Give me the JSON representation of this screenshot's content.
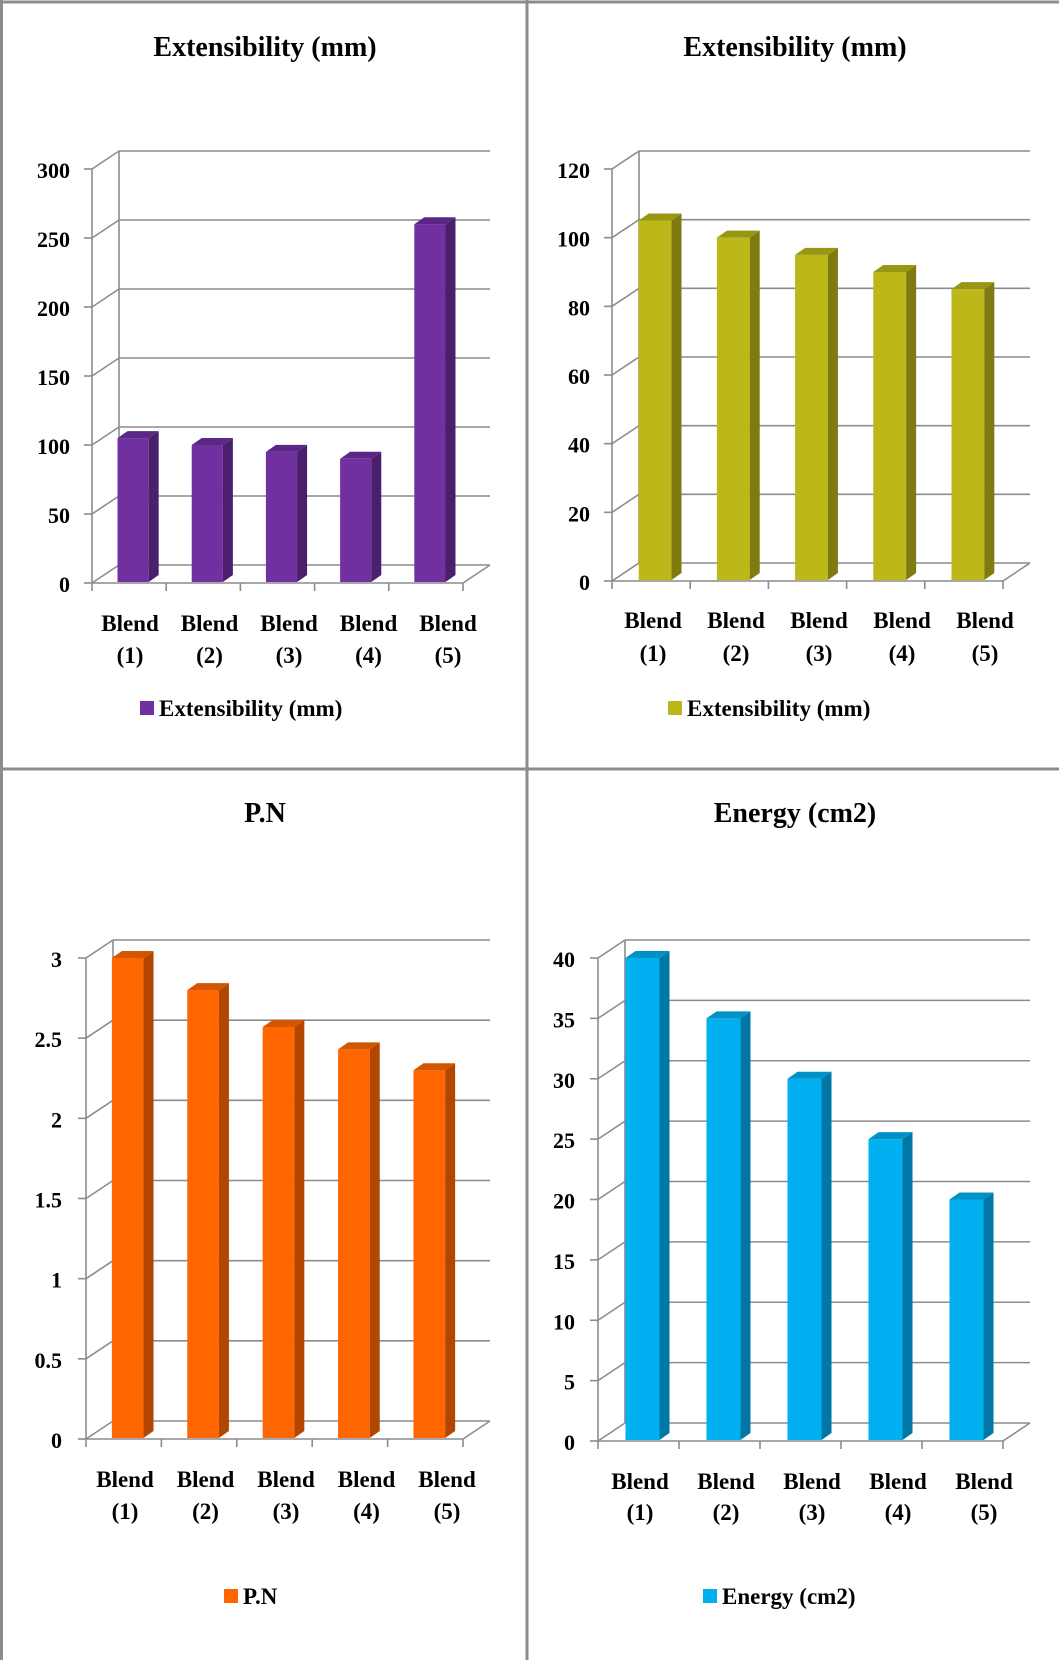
{
  "chart_data": [
    {
      "type": "bar",
      "title": "Extensibility (mm)",
      "categories": [
        [
          "Blend",
          "(1)"
        ],
        [
          "Blend",
          "(2)"
        ],
        [
          "Blend",
          "(3)"
        ],
        [
          "Blend",
          "(4)"
        ],
        [
          "Blend",
          "(5)"
        ]
      ],
      "series": [
        {
          "name": "Extensibility (mm)",
          "values": [
            105,
            100,
            95,
            90,
            260
          ]
        }
      ],
      "ylim": [
        0,
        300
      ],
      "yticks": [
        "0",
        "50",
        "100",
        "150",
        "200",
        "250",
        "300"
      ],
      "legend": "bottom",
      "grid": true,
      "color": "#7030a0",
      "side_color": "#4a1f6b",
      "top_color": "#5a2786"
    },
    {
      "type": "bar",
      "title": "Extensibility (mm)",
      "categories": [
        [
          "Blend",
          "(1)"
        ],
        [
          "Blend",
          "(2)"
        ],
        [
          "Blend",
          "(3)"
        ],
        [
          "Blend",
          "(4)"
        ],
        [
          "Blend",
          "(5)"
        ]
      ],
      "series": [
        {
          "name": "Extensibility (mm)",
          "values": [
            105,
            100,
            95,
            90,
            85
          ]
        }
      ],
      "ylim": [
        0,
        120
      ],
      "yticks": [
        "0",
        "20",
        "40",
        "60",
        "80",
        "100",
        "120"
      ],
      "legend": "bottom",
      "grid": true,
      "color": "#bdb81a",
      "side_color": "#7f7b10",
      "top_color": "#9a9614"
    },
    {
      "type": "bar",
      "title": "P.N",
      "categories": [
        [
          "Blend",
          "(1)"
        ],
        [
          "Blend",
          "(2)"
        ],
        [
          "Blend",
          "(3)"
        ],
        [
          "Blend",
          "(4)"
        ],
        [
          "Blend",
          "(5)"
        ]
      ],
      "series": [
        {
          "name": "P.N",
          "values": [
            3.0,
            2.8,
            2.57,
            2.43,
            2.3
          ]
        }
      ],
      "ylim": [
        0,
        3
      ],
      "yticks": [
        "0",
        "0.5",
        "1",
        "1.5",
        "2",
        "2.5",
        "3"
      ],
      "legend": "bottom",
      "grid": true,
      "color": "#ff6600",
      "side_color": "#b34700",
      "top_color": "#d45500"
    },
    {
      "type": "bar",
      "title": "Energy (cm2)",
      "categories": [
        [
          "Blend",
          "(1)"
        ],
        [
          "Blend",
          "(2)"
        ],
        [
          "Blend",
          "(3)"
        ],
        [
          "Blend",
          "(4)"
        ],
        [
          "Blend",
          "(5)"
        ]
      ],
      "series": [
        {
          "name": "Energy (cm2)",
          "values": [
            40,
            35,
            30,
            25,
            20
          ]
        }
      ],
      "ylim": [
        0,
        40
      ],
      "yticks": [
        "0",
        "5",
        "10",
        "15",
        "20",
        "25",
        "30",
        "35",
        "40"
      ],
      "legend": "bottom",
      "grid": true,
      "color": "#00b0f0",
      "side_color": "#0077a6",
      "top_color": "#0092c7"
    }
  ]
}
